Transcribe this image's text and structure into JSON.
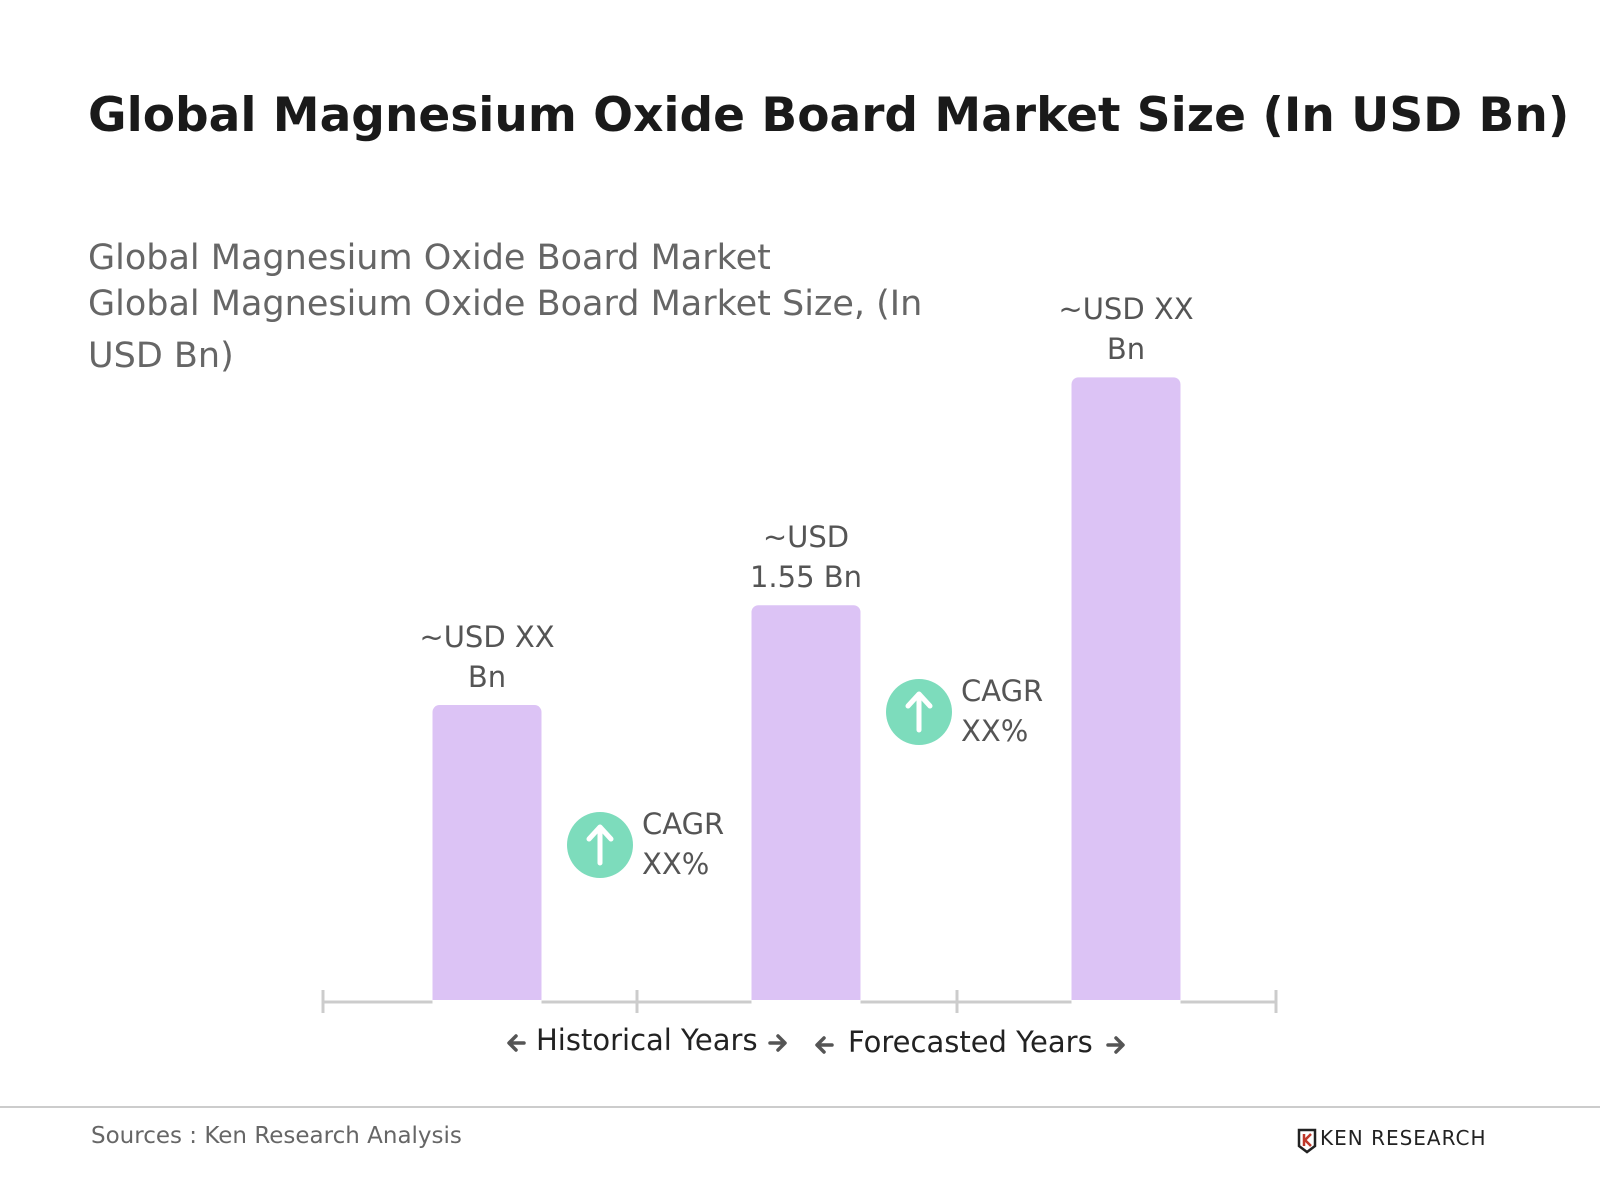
{
  "chart_data": {
    "type": "bar",
    "title": "Global Magnesium Oxide Board Market Size (In USD Bn)",
    "subtitle": [
      "Global Magnesium Oxide Board Market",
      "Global Magnesium Oxide Board Market Size, (In USD Bn)"
    ],
    "values": [
      1.16,
      1.55,
      2.44
    ],
    "value_labels": [
      "~USD XX Bn",
      "~USD 1.55 Bn",
      "~USD XX Bn"
    ],
    "color": "#dcc3f5",
    "annotations": [
      "CAGR XX%",
      "CAGR XX%"
    ],
    "period_labels": [
      "Historical Years",
      "Forecasted Years"
    ]
  },
  "footer": {
    "source": "Sources : Ken Research Analysis",
    "logo": "KEN RESEARCH"
  }
}
